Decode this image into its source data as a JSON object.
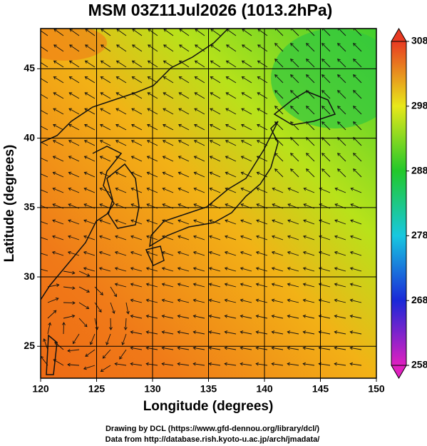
{
  "chart_data": {
    "type": "map",
    "title": "MSM 03Z11Jul2026 (1013.2hPa)",
    "xlabel": "Longitude (degrees)",
    "ylabel": "Latitude  (degrees)",
    "xlim": [
      120,
      150
    ],
    "xticks": [
      120,
      125,
      130,
      135,
      140,
      145,
      150
    ],
    "ylim": [
      22.7,
      47.9
    ],
    "yticks": [
      25,
      30,
      35,
      40,
      45
    ],
    "grid": true,
    "clim": [
      258,
      308
    ],
    "cticks": [
      258,
      268,
      278,
      288,
      298,
      308
    ],
    "footer": [
      "Drawing by DCL (https://www.gfd-dennou.org/library/dcl/)",
      "Data from http://database.rish.kyoto-u.ac.jp/arch/jmadata/"
    ]
  }
}
